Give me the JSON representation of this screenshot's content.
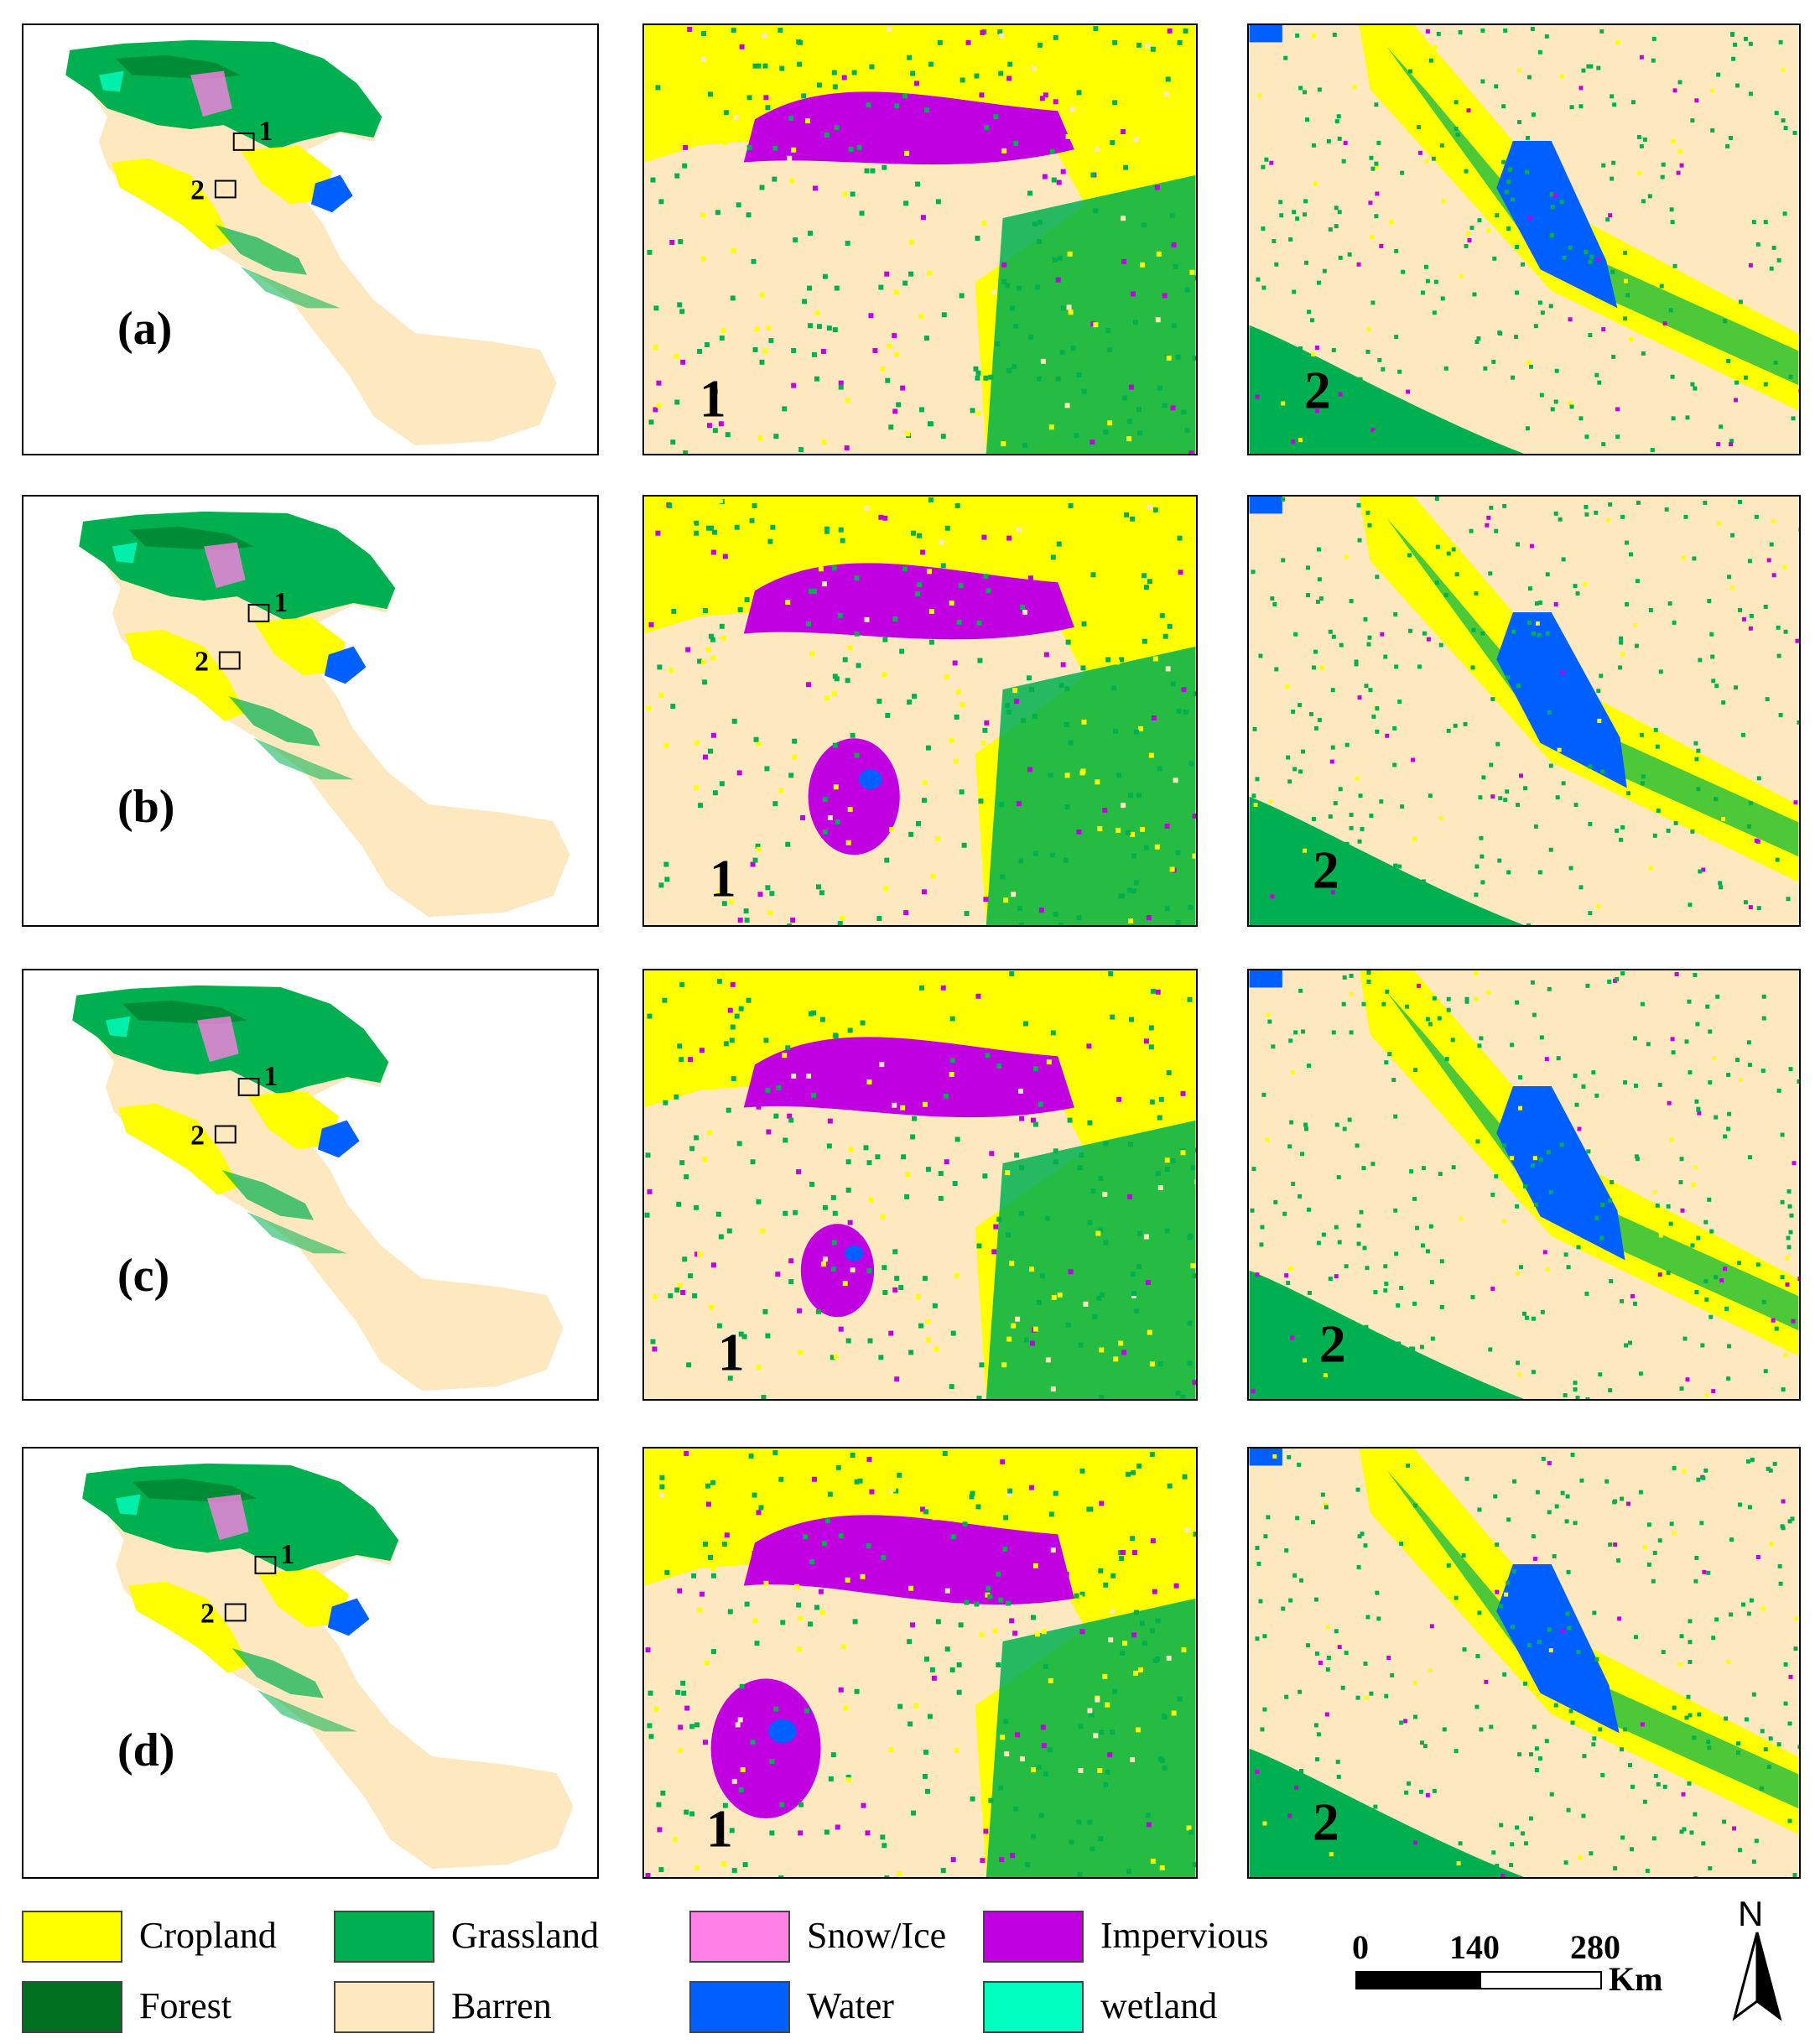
{
  "colors": {
    "cropland": "#ffff00",
    "grassland": "#00b050",
    "snow_ice": "#ff80e6",
    "impervious": "#c000e0",
    "forest": "#007020",
    "barren": "#fde8c0",
    "water": "#0060ff",
    "wetland": "#00ffc0"
  },
  "rows": [
    {
      "label": "(a)",
      "box1": "1",
      "box2": "2",
      "inset1": "1",
      "inset2": "2"
    },
    {
      "label": "(b)",
      "box1": "1",
      "box2": "2",
      "inset1": "1",
      "inset2": "2"
    },
    {
      "label": "(c)",
      "box1": "1",
      "box2": "2",
      "inset1": "1",
      "inset2": "2"
    },
    {
      "label": "(d)",
      "box1": "1",
      "box2": "2",
      "inset1": "1",
      "inset2": "2"
    }
  ],
  "legend": [
    {
      "label": "Cropland",
      "color": "#ffff00"
    },
    {
      "label": "Grassland",
      "color": "#00b050"
    },
    {
      "label": "Snow/Ice",
      "color": "#ff80e6"
    },
    {
      "label": "Impervious",
      "color": "#c000e0"
    },
    {
      "label": "Forest",
      "color": "#007020"
    },
    {
      "label": "Barren",
      "color": "#fde8c0"
    },
    {
      "label": "Water",
      "color": "#0060ff"
    },
    {
      "label": "wetland",
      "color": "#00ffc0"
    }
  ],
  "scale_bar": {
    "ticks": [
      "0",
      "140",
      "280"
    ],
    "unit": "Km"
  },
  "north_arrow": {
    "label": "N"
  }
}
